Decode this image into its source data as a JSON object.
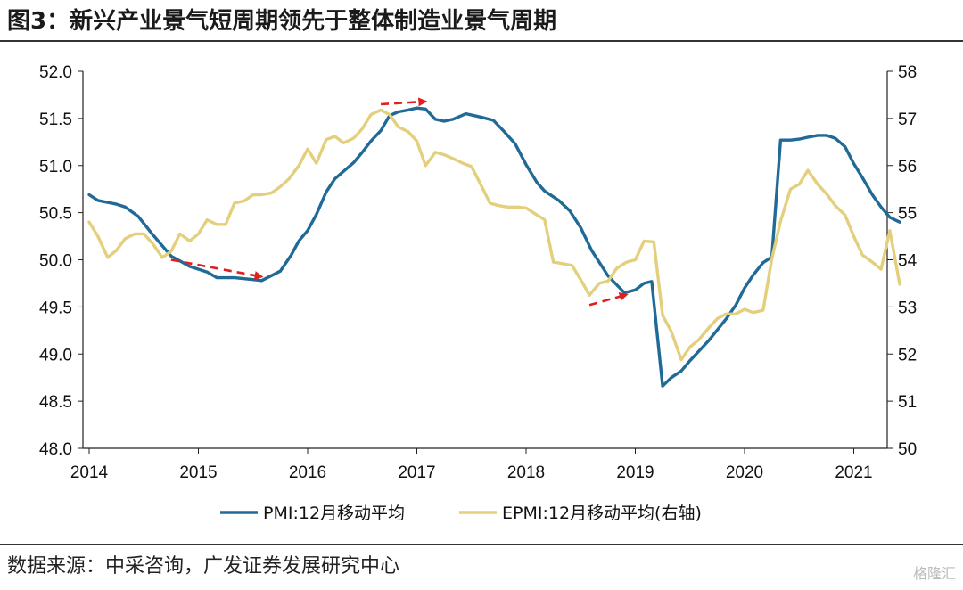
{
  "title": "图3：新兴产业景气短周期领先于整体制造业景气周期",
  "source": "数据来源：中采咨询，广发证券发展研究中心",
  "watermark": "格隆汇",
  "chart_data": {
    "type": "line",
    "x_ticks": [
      "2014",
      "2015",
      "2016",
      "2017",
      "2018",
      "2019",
      "2020",
      "2021"
    ],
    "x_range": [
      2014.0,
      2021.33
    ],
    "y_left": {
      "ticks": [
        "52.0",
        "51.5",
        "51.0",
        "50.5",
        "50.0",
        "49.5",
        "49.0",
        "48.5",
        "48.0"
      ],
      "range": [
        48.0,
        52.0
      ]
    },
    "y_right": {
      "ticks": [
        "58",
        "57",
        "56",
        "55",
        "54",
        "53",
        "52",
        "51",
        "50"
      ],
      "range": [
        50,
        58
      ]
    },
    "series": [
      {
        "name": "PMI:12月移动平均",
        "axis": "left",
        "color": "#1f6a96",
        "points": [
          [
            2014.0,
            50.69
          ],
          [
            2014.08,
            50.63
          ],
          [
            2014.25,
            50.59
          ],
          [
            2014.33,
            50.56
          ],
          [
            2014.45,
            50.46
          ],
          [
            2014.58,
            50.27
          ],
          [
            2014.75,
            50.04
          ],
          [
            2014.92,
            49.93
          ],
          [
            2015.08,
            49.87
          ],
          [
            2015.17,
            49.81
          ],
          [
            2015.33,
            49.81
          ],
          [
            2015.5,
            49.79
          ],
          [
            2015.58,
            49.78
          ],
          [
            2015.75,
            49.88
          ],
          [
            2015.85,
            50.05
          ],
          [
            2015.92,
            50.2
          ],
          [
            2016.0,
            50.31
          ],
          [
            2016.08,
            50.48
          ],
          [
            2016.17,
            50.72
          ],
          [
            2016.25,
            50.86
          ],
          [
            2016.33,
            50.94
          ],
          [
            2016.42,
            51.03
          ],
          [
            2016.5,
            51.14
          ],
          [
            2016.58,
            51.26
          ],
          [
            2016.67,
            51.37
          ],
          [
            2016.75,
            51.53
          ],
          [
            2016.83,
            51.57
          ],
          [
            2016.92,
            51.59
          ],
          [
            2017.0,
            51.61
          ],
          [
            2017.08,
            51.6
          ],
          [
            2017.17,
            51.49
          ],
          [
            2017.25,
            51.47
          ],
          [
            2017.33,
            51.49
          ],
          [
            2017.45,
            51.55
          ],
          [
            2017.6,
            51.51
          ],
          [
            2017.7,
            51.48
          ],
          [
            2017.8,
            51.36
          ],
          [
            2017.9,
            51.23
          ],
          [
            2018.0,
            51.01
          ],
          [
            2018.1,
            50.82
          ],
          [
            2018.17,
            50.73
          ],
          [
            2018.3,
            50.63
          ],
          [
            2018.4,
            50.52
          ],
          [
            2018.5,
            50.34
          ],
          [
            2018.6,
            50.1
          ],
          [
            2018.75,
            49.83
          ],
          [
            2018.9,
            49.65
          ],
          [
            2019.0,
            49.68
          ],
          [
            2019.08,
            49.75
          ],
          [
            2019.15,
            49.77
          ],
          [
            2019.25,
            48.66
          ],
          [
            2019.33,
            48.75
          ],
          [
            2019.42,
            48.82
          ],
          [
            2019.5,
            48.93
          ],
          [
            2019.67,
            49.14
          ],
          [
            2019.83,
            49.37
          ],
          [
            2019.92,
            49.52
          ],
          [
            2020.0,
            49.7
          ],
          [
            2020.08,
            49.84
          ],
          [
            2020.17,
            49.97
          ],
          [
            2020.25,
            50.03
          ],
          [
            2020.33,
            51.27
          ],
          [
            2020.42,
            51.27
          ],
          [
            2020.5,
            51.28
          ],
          [
            2020.58,
            51.3
          ],
          [
            2020.67,
            51.32
          ],
          [
            2020.75,
            51.32
          ],
          [
            2020.83,
            51.29
          ],
          [
            2020.92,
            51.2
          ],
          [
            2021.0,
            51.02
          ],
          [
            2021.08,
            50.87
          ],
          [
            2021.17,
            50.69
          ],
          [
            2021.25,
            50.56
          ],
          [
            2021.33,
            50.45
          ],
          [
            2021.42,
            50.4
          ]
        ]
      },
      {
        "name": "EPMI:12月移动平均(右轴)",
        "axis": "right",
        "color": "#e3cf7c",
        "points": [
          [
            2014.0,
            54.8
          ],
          [
            2014.08,
            54.5
          ],
          [
            2014.17,
            54.05
          ],
          [
            2014.25,
            54.2
          ],
          [
            2014.33,
            54.45
          ],
          [
            2014.42,
            54.55
          ],
          [
            2014.5,
            54.55
          ],
          [
            2014.58,
            54.35
          ],
          [
            2014.67,
            54.05
          ],
          [
            2014.75,
            54.18
          ],
          [
            2014.83,
            54.55
          ],
          [
            2014.92,
            54.4
          ],
          [
            2015.0,
            54.55
          ],
          [
            2015.08,
            54.85
          ],
          [
            2015.17,
            54.75
          ],
          [
            2015.25,
            54.75
          ],
          [
            2015.33,
            55.2
          ],
          [
            2015.42,
            55.25
          ],
          [
            2015.5,
            55.38
          ],
          [
            2015.58,
            55.38
          ],
          [
            2015.67,
            55.42
          ],
          [
            2015.75,
            55.55
          ],
          [
            2015.83,
            55.72
          ],
          [
            2015.92,
            56.0
          ],
          [
            2016.0,
            56.35
          ],
          [
            2016.08,
            56.05
          ],
          [
            2016.17,
            56.55
          ],
          [
            2016.25,
            56.62
          ],
          [
            2016.33,
            56.48
          ],
          [
            2016.42,
            56.58
          ],
          [
            2016.5,
            56.78
          ],
          [
            2016.58,
            57.08
          ],
          [
            2016.67,
            57.18
          ],
          [
            2016.75,
            57.08
          ],
          [
            2016.83,
            56.82
          ],
          [
            2016.92,
            56.72
          ],
          [
            2017.0,
            56.52
          ],
          [
            2017.08,
            56.0
          ],
          [
            2017.17,
            56.28
          ],
          [
            2017.25,
            56.23
          ],
          [
            2017.33,
            56.15
          ],
          [
            2017.42,
            56.05
          ],
          [
            2017.5,
            55.98
          ],
          [
            2017.58,
            55.62
          ],
          [
            2017.67,
            55.2
          ],
          [
            2017.75,
            55.15
          ],
          [
            2017.83,
            55.12
          ],
          [
            2017.92,
            55.12
          ],
          [
            2018.0,
            55.1
          ],
          [
            2018.08,
            54.98
          ],
          [
            2018.17,
            54.85
          ],
          [
            2018.25,
            53.95
          ],
          [
            2018.33,
            53.92
          ],
          [
            2018.42,
            53.88
          ],
          [
            2018.5,
            53.58
          ],
          [
            2018.58,
            53.25
          ],
          [
            2018.67,
            53.5
          ],
          [
            2018.75,
            53.55
          ],
          [
            2018.83,
            53.82
          ],
          [
            2018.92,
            53.95
          ],
          [
            2019.0,
            54.0
          ],
          [
            2019.08,
            54.4
          ],
          [
            2019.17,
            54.38
          ],
          [
            2019.25,
            52.82
          ],
          [
            2019.33,
            52.48
          ],
          [
            2019.42,
            51.88
          ],
          [
            2019.5,
            52.15
          ],
          [
            2019.58,
            52.3
          ],
          [
            2019.67,
            52.55
          ],
          [
            2019.75,
            52.75
          ],
          [
            2019.83,
            52.85
          ],
          [
            2019.92,
            52.85
          ],
          [
            2020.0,
            52.95
          ],
          [
            2020.08,
            52.88
          ],
          [
            2020.17,
            52.93
          ],
          [
            2020.25,
            54.02
          ],
          [
            2020.33,
            54.82
          ],
          [
            2020.42,
            55.5
          ],
          [
            2020.5,
            55.6
          ],
          [
            2020.58,
            55.9
          ],
          [
            2020.67,
            55.6
          ],
          [
            2020.75,
            55.4
          ],
          [
            2020.83,
            55.15
          ],
          [
            2020.92,
            54.95
          ],
          [
            2021.0,
            54.5
          ],
          [
            2021.08,
            54.1
          ],
          [
            2021.17,
            53.95
          ],
          [
            2021.25,
            53.8
          ],
          [
            2021.33,
            54.62
          ],
          [
            2021.42,
            53.48
          ]
        ]
      }
    ],
    "annotations": [
      {
        "type": "dashed-arrow",
        "color": "#e02020",
        "from": [
          2014.75,
          50.0
        ],
        "to": [
          2015.58,
          49.82
        ],
        "axis": "left"
      },
      {
        "type": "dashed-arrow",
        "color": "#e02020",
        "from": [
          2016.67,
          51.65
        ],
        "to": [
          2017.08,
          51.68
        ],
        "axis": "left"
      },
      {
        "type": "dashed-arrow",
        "color": "#e02020",
        "from": [
          2018.58,
          49.52
        ],
        "to": [
          2018.92,
          49.63
        ],
        "axis": "left"
      }
    ],
    "legend": {
      "position": "bottom-center"
    },
    "grid": false
  }
}
